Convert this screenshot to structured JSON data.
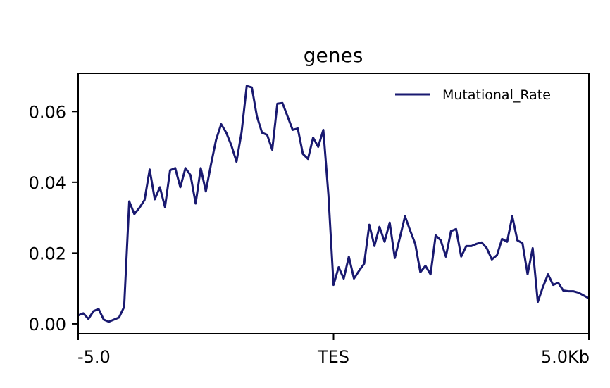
{
  "chart_data": {
    "type": "line",
    "title": "genes",
    "xlabel": "",
    "ylabel": "",
    "xlim": [
      0,
      100
    ],
    "ylim": [
      -0.0028,
      0.0708
    ],
    "x_tick_labels": [
      {
        "x": 0,
        "label": "-5.0"
      },
      {
        "x": 50,
        "label": "TES"
      },
      {
        "x": 100,
        "label": "5.0Kb"
      }
    ],
    "y_ticks": [
      {
        "value": 0.0,
        "label": "0.00"
      },
      {
        "value": 0.02,
        "label": "0.02"
      },
      {
        "value": 0.04,
        "label": "0.04"
      },
      {
        "value": 0.06,
        "label": "0.06"
      }
    ],
    "legend": {
      "position": "top-right"
    },
    "grid": false,
    "series": [
      {
        "name": "Mutational_Rate",
        "color": "#191970",
        "x": [
          0,
          1,
          2,
          3,
          4,
          5,
          6,
          7,
          8,
          9,
          10,
          11,
          12,
          13,
          14,
          15,
          16,
          17,
          18,
          19,
          20,
          21,
          22,
          23,
          24,
          25,
          26,
          27,
          28,
          29,
          30,
          31,
          32,
          33,
          34,
          35,
          36,
          37,
          38,
          39,
          40,
          41,
          42,
          43,
          44,
          45,
          46,
          47,
          48,
          49,
          50,
          51,
          52,
          53,
          54,
          55,
          56,
          57,
          58,
          59,
          60,
          61,
          62,
          63,
          64,
          65,
          66,
          67,
          68,
          69,
          70,
          71,
          72,
          73,
          74,
          75,
          76,
          77,
          78,
          79,
          80,
          81,
          82,
          83,
          84,
          85,
          86,
          87,
          88,
          89,
          90,
          91,
          92,
          93,
          94,
          95,
          96,
          97,
          98,
          99,
          100
        ],
        "values": [
          0.0024,
          0.003,
          0.0014,
          0.0036,
          0.0042,
          0.0012,
          0.0006,
          0.0012,
          0.0018,
          0.0048,
          0.0346,
          0.031,
          0.0328,
          0.035,
          0.0436,
          0.0352,
          0.0386,
          0.033,
          0.0434,
          0.044,
          0.0386,
          0.044,
          0.042,
          0.034,
          0.044,
          0.0374,
          0.045,
          0.052,
          0.0564,
          0.054,
          0.0504,
          0.0458,
          0.0542,
          0.0672,
          0.0668,
          0.0586,
          0.054,
          0.0534,
          0.0492,
          0.0622,
          0.0624,
          0.0586,
          0.0548,
          0.0552,
          0.048,
          0.0466,
          0.0526,
          0.05,
          0.0548,
          0.0364,
          0.011,
          0.016,
          0.0128,
          0.019,
          0.0128,
          0.015,
          0.017,
          0.028,
          0.022,
          0.0274,
          0.0232,
          0.0286,
          0.0186,
          0.0244,
          0.0304,
          0.0264,
          0.0226,
          0.0146,
          0.0164,
          0.014,
          0.025,
          0.0236,
          0.019,
          0.0262,
          0.0268,
          0.019,
          0.022,
          0.022,
          0.0226,
          0.023,
          0.0214,
          0.0182,
          0.0194,
          0.024,
          0.0232,
          0.0304,
          0.0236,
          0.0228,
          0.014,
          0.0214,
          0.0062,
          0.0104,
          0.014,
          0.011,
          0.0116,
          0.0094,
          0.0092,
          0.0092,
          0.0088,
          0.008,
          0.0072
        ]
      }
    ]
  }
}
